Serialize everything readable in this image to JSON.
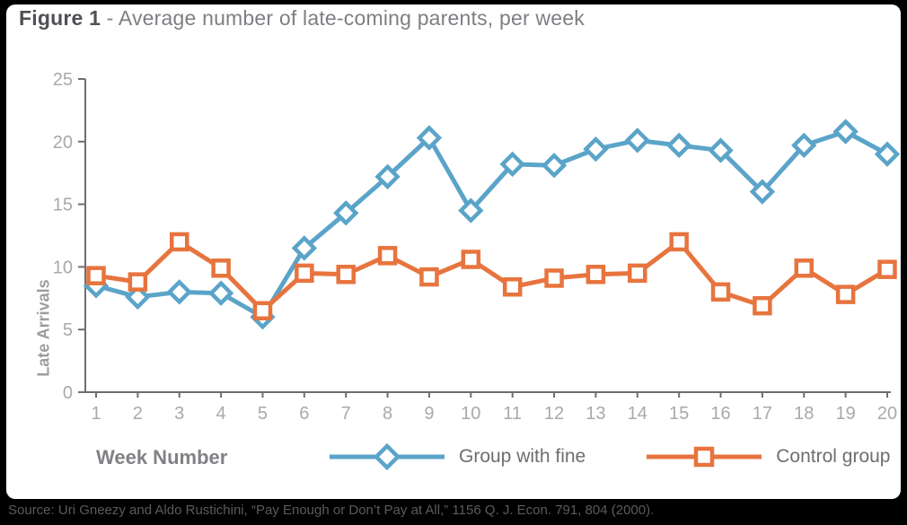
{
  "figure": {
    "title_bold": "Figure 1",
    "title_rest": " - Average number of late-coming parents, per week",
    "source": "Source: Uri Gneezy and Aldo Rustichini, “Pay Enough or Don’t Pay at All,” 1156 Q. J. Econ. 791, 804 (2000)."
  },
  "chart_data": {
    "type": "line",
    "title": "Figure 1 - Average number of late-coming parents, per week",
    "xlabel": "Week Number",
    "ylabel": "Late Arrivals",
    "x": [
      1,
      2,
      3,
      4,
      5,
      6,
      7,
      8,
      9,
      10,
      11,
      12,
      13,
      14,
      15,
      16,
      17,
      18,
      19,
      20
    ],
    "ylim": [
      0,
      25
    ],
    "yticks": [
      0,
      5,
      10,
      15,
      20,
      25
    ],
    "grid": false,
    "legend_position": "bottom",
    "series": [
      {
        "name": "Group with fine",
        "color": "#5ba4c9",
        "marker": "diamond",
        "values": [
          8.5,
          7.6,
          8.0,
          7.9,
          6.0,
          11.5,
          14.3,
          17.2,
          20.3,
          14.5,
          18.2,
          18.1,
          19.4,
          20.1,
          19.7,
          19.3,
          16.0,
          19.7,
          20.8,
          19.0
        ]
      },
      {
        "name": "Control group",
        "color": "#e7743e",
        "marker": "square",
        "values": [
          9.3,
          8.8,
          12.0,
          9.9,
          6.5,
          9.5,
          9.4,
          10.9,
          9.2,
          10.6,
          8.4,
          9.1,
          9.4,
          9.5,
          12.0,
          8.0,
          6.9,
          9.9,
          7.8,
          9.8
        ]
      }
    ],
    "axis_color": "#6d6e71",
    "tick_label_color": "#a7a9ac"
  }
}
